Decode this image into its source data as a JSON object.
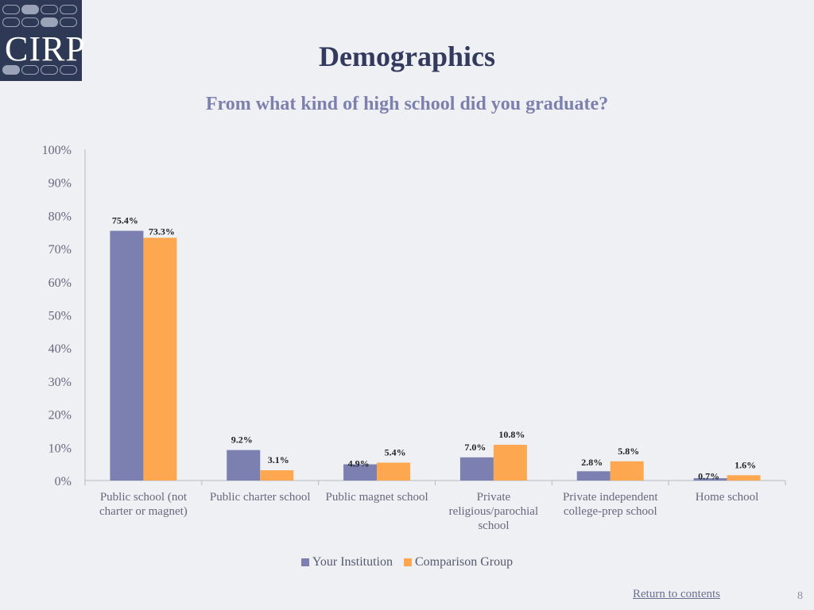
{
  "logo": {
    "text": "CIRP"
  },
  "header": {
    "title": "Demographics",
    "subtitle": "From what kind of high school did you graduate?"
  },
  "colors": {
    "your_institution": "#7b80b0",
    "comparison_group": "#fda850",
    "axis_text": "#66697f",
    "label_text": "#222222"
  },
  "chart_data": {
    "type": "bar",
    "categories": [
      [
        "Public school (not",
        "charter or magnet)"
      ],
      [
        "Public charter school"
      ],
      [
        "Public magnet school"
      ],
      [
        "Private",
        "religious/parochial",
        "school"
      ],
      [
        "Private independent",
        "college-prep school"
      ],
      [
        "Home school"
      ]
    ],
    "series": [
      {
        "name": "Your Institution",
        "values": [
          75.4,
          9.2,
          4.9,
          7.0,
          2.8,
          0.7
        ],
        "labels": [
          "75.4%",
          "9.2%",
          "4.9%",
          "7.0%",
          "2.8%",
          "0.7%"
        ]
      },
      {
        "name": "Comparison Group",
        "values": [
          73.3,
          3.1,
          5.4,
          10.8,
          5.8,
          1.6
        ],
        "labels": [
          "73.3%",
          "3.1%",
          "5.4%",
          "10.8%",
          "5.8%",
          "1.6%"
        ]
      }
    ],
    "ylim": [
      0,
      100
    ],
    "yticks": [
      "0%",
      "10%",
      "20%",
      "30%",
      "40%",
      "50%",
      "60%",
      "70%",
      "80%",
      "90%",
      "100%"
    ],
    "legend": "bottom",
    "grid": false
  },
  "footer": {
    "link": "Return to contents",
    "page": "8"
  }
}
